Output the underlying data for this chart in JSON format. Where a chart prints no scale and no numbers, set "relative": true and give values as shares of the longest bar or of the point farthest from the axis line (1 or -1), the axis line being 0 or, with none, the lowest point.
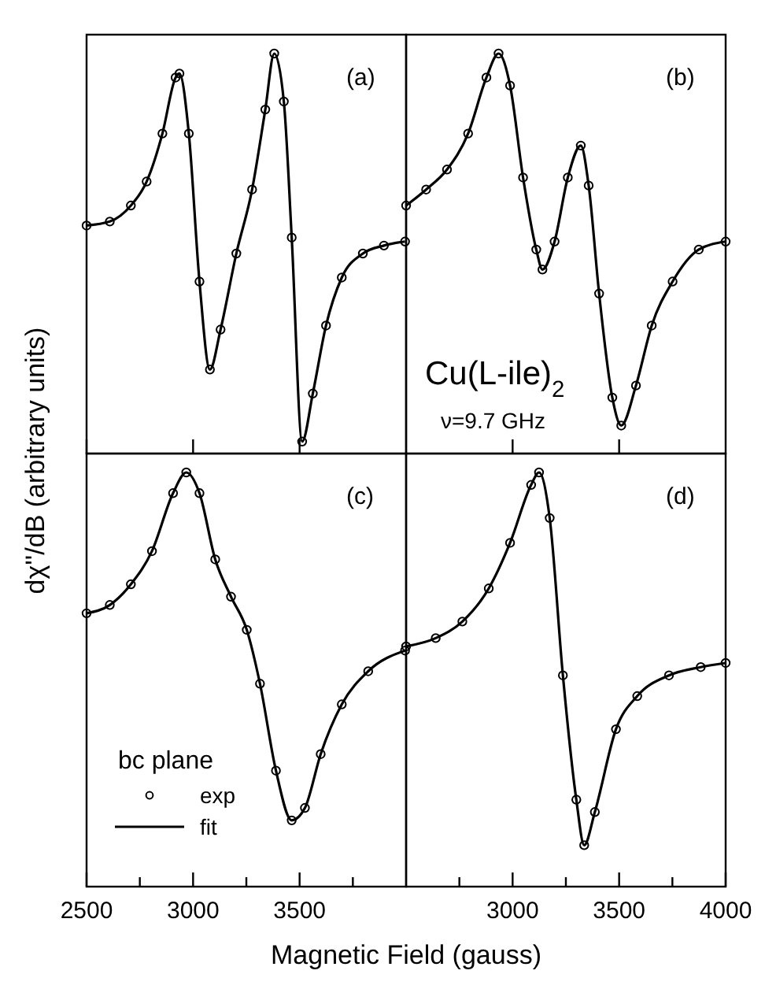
{
  "chart_data": [
    {
      "type": "line",
      "relative": true,
      "tick_labels": false,
      "ylabel": "dχ''/dB (arbitrary units)",
      "annotations": [
        "(a)"
      ],
      "xlim": [
        2500,
        4000
      ],
      "xticks": [
        {
          "value": 2500,
          "label": null
        },
        {
          "value": 3000,
          "label": null
        },
        {
          "value": 3500,
          "label": null
        }
      ],
      "x": [
        2500,
        2609,
        2708,
        2782,
        2856,
        2918,
        2936,
        2980,
        3030,
        3079,
        3129,
        3203,
        3277,
        3339,
        3381,
        3426,
        3463,
        3512,
        3562,
        3624,
        3698,
        3797,
        3896,
        3995
      ],
      "series": [
        {
          "type": "scatter",
          "marker": "circle",
          "color": "#000000",
          "values": [
            0.57,
            0.58,
            0.62,
            0.68,
            0.8,
            0.94,
            0.95,
            0.8,
            0.43,
            0.21,
            0.31,
            0.5,
            0.66,
            0.86,
            1.0,
            0.88,
            0.54,
            0.03,
            0.15,
            0.32,
            0.44,
            0.5,
            0.52,
            0.53
          ]
        },
        {
          "color": "#000000",
          "values": [
            0.57,
            0.58,
            0.62,
            0.68,
            0.8,
            0.94,
            0.95,
            0.8,
            0.43,
            0.21,
            0.31,
            0.5,
            0.66,
            0.86,
            1.0,
            0.88,
            0.54,
            0.03,
            0.15,
            0.32,
            0.44,
            0.5,
            0.52,
            0.53
          ]
        }
      ]
    },
    {
      "type": "line",
      "relative": true,
      "tick_labels": false,
      "annotations": [
        "(b)",
        "Cu(L-ile)$_{2}$",
        "ν=9.7 GHz"
      ],
      "xlim": [
        2500,
        4000
      ],
      "xticks": [
        {
          "value": 3000,
          "label": null
        },
        {
          "value": 3500,
          "label": null
        }
      ],
      "x": [
        2500,
        2594,
        2692,
        2791,
        2877,
        2934,
        2988,
        3049,
        3111,
        3140,
        3197,
        3259,
        3320,
        3357,
        3406,
        3468,
        3510,
        3579,
        3653,
        3751,
        3874,
        4000
      ],
      "series": [
        {
          "type": "scatter",
          "marker": "circle",
          "color": "#000000",
          "values": [
            0.62,
            0.66,
            0.71,
            0.8,
            0.94,
            1.0,
            0.92,
            0.69,
            0.51,
            0.46,
            0.53,
            0.69,
            0.77,
            0.67,
            0.4,
            0.14,
            0.07,
            0.17,
            0.32,
            0.43,
            0.51,
            0.53
          ]
        },
        {
          "color": "#000000",
          "values": [
            0.62,
            0.66,
            0.71,
            0.8,
            0.94,
            1.0,
            0.92,
            0.69,
            0.51,
            0.46,
            0.53,
            0.69,
            0.77,
            0.67,
            0.4,
            0.14,
            0.07,
            0.17,
            0.32,
            0.43,
            0.51,
            0.53
          ]
        }
      ]
    },
    {
      "type": "line",
      "relative": true,
      "tick_labels": "x",
      "xlabel": "Magnetic Field (gauss)",
      "annotations": [
        "(c)"
      ],
      "legend": "bottom left",
      "legend_title": "bc plane",
      "xlim": [
        2500,
        4000
      ],
      "xticks": [
        2500,
        {
          "value": 2750,
          "label": null
        },
        3000,
        {
          "value": 3250,
          "label": null
        },
        3500,
        {
          "value": 3750,
          "label": null
        }
      ],
      "x": [
        2500,
        2609,
        2708,
        2807,
        2906,
        2968,
        3030,
        3104,
        3178,
        3252,
        3314,
        3389,
        3463,
        3525,
        3599,
        3698,
        3822,
        3995
      ],
      "series": [
        {
          "type": "scatter",
          "name": "exp",
          "marker": "circle",
          "color": "#000000",
          "values": [
            0.66,
            0.68,
            0.73,
            0.81,
            0.95,
            1.0,
            0.95,
            0.79,
            0.7,
            0.62,
            0.49,
            0.28,
            0.16,
            0.19,
            0.32,
            0.44,
            0.52,
            0.57
          ]
        },
        {
          "name": "fit",
          "color": "#000000",
          "values": [
            0.66,
            0.68,
            0.73,
            0.81,
            0.95,
            1.0,
            0.95,
            0.79,
            0.7,
            0.62,
            0.49,
            0.28,
            0.16,
            0.19,
            0.32,
            0.44,
            0.52,
            0.57
          ]
        }
      ]
    },
    {
      "type": "line",
      "relative": true,
      "tick_labels": "x",
      "annotations": [
        "(d)"
      ],
      "xlim": [
        2500,
        4000
      ],
      "xticks": [
        {
          "value": 2750,
          "label": null
        },
        3000,
        {
          "value": 3250,
          "label": null
        },
        3500,
        {
          "value": 3750,
          "label": null
        },
        4000
      ],
      "x": [
        2500,
        2639,
        2764,
        2888,
        2988,
        3087,
        3124,
        3174,
        3236,
        3299,
        3336,
        3386,
        3485,
        3585,
        3734,
        3883,
        4000
      ],
      "series": [
        {
          "type": "scatter",
          "marker": "circle",
          "color": "#000000",
          "values": [
            0.58,
            0.6,
            0.64,
            0.72,
            0.83,
            0.97,
            1.0,
            0.89,
            0.51,
            0.21,
            0.1,
            0.18,
            0.38,
            0.46,
            0.51,
            0.53,
            0.54
          ]
        },
        {
          "color": "#000000",
          "values": [
            0.58,
            0.6,
            0.64,
            0.72,
            0.83,
            0.97,
            1.0,
            0.89,
            0.51,
            0.21,
            0.1,
            0.18,
            0.38,
            0.46,
            0.51,
            0.53,
            0.54
          ]
        }
      ]
    }
  ]
}
